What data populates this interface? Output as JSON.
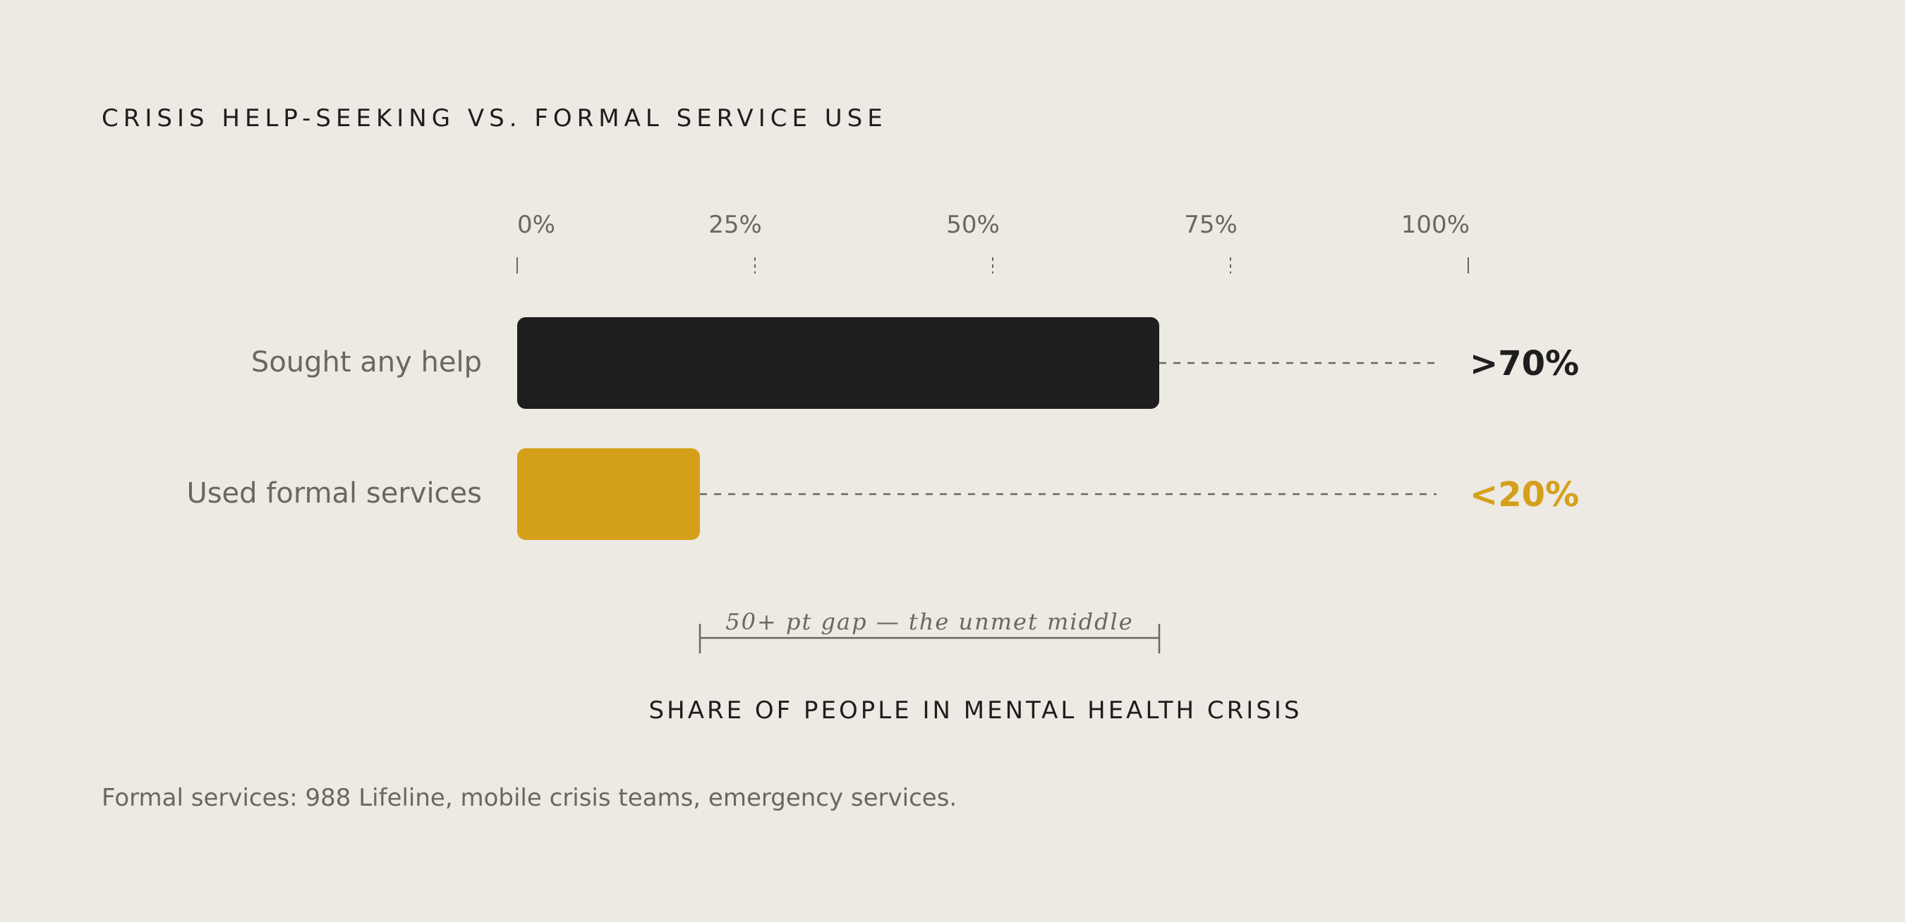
{
  "chart_data": {
    "type": "bar",
    "orientation": "horizontal",
    "title": "CRISIS HELP-SEEKING VS. FORMAL SERVICE USE",
    "xlabel": "SHARE OF PEOPLE IN MENTAL HEALTH CRISIS",
    "ylabel": "",
    "xlim": [
      0,
      100
    ],
    "ticks": [
      "0%",
      "25%",
      "50%",
      "75%",
      "100%"
    ],
    "tick_values": [
      0,
      25,
      50,
      75,
      100
    ],
    "categories": [
      "Sought any help",
      "Used formal services"
    ],
    "values": [
      70,
      20
    ],
    "value_labels": [
      ">70%",
      "<20%"
    ],
    "colors": [
      "#1E1E1E",
      "#D4A01A"
    ],
    "annotation": "50+ pt gap — the unmet middle",
    "grid": false,
    "legend": "none"
  },
  "note": "Formal services: 988 Lifeline, mobile crisis teams, emergency services."
}
